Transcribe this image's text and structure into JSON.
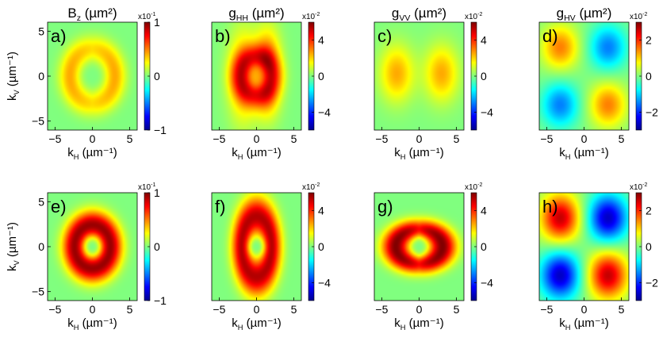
{
  "chart_data": [
    {
      "id": "a",
      "type": "heatmap",
      "panel_label": "a)",
      "title": "B",
      "title_sub": "z",
      "title_unit": " (µm²)",
      "xlabel": "k",
      "xlabel_sub": "H",
      "xlabel_unit": " (µm⁻¹)",
      "ylabel": "k",
      "ylabel_sub": "V",
      "ylabel_unit": " (µm⁻¹)",
      "xticks": [
        -5,
        0,
        5
      ],
      "yticks": [
        5,
        0,
        -5
      ],
      "xlim": [
        -6,
        6
      ],
      "ylim": [
        -6,
        6
      ],
      "colorbar": {
        "exponent_label": "x10",
        "exponent": "-1",
        "vmin": -1,
        "vmax": 1,
        "ticks": [
          1,
          0,
          -1
        ]
      },
      "pattern": "two_crescents",
      "peak": 0.42
    },
    {
      "id": "b",
      "type": "heatmap",
      "panel_label": "b)",
      "title": "g",
      "title_sub": "HH",
      "title_unit": " (µm²)",
      "xlabel": "k",
      "xlabel_sub": "H",
      "xlabel_unit": " (µm⁻¹)",
      "ylabel": "",
      "xticks": [
        -5,
        0,
        5
      ],
      "yticks": [],
      "xlim": [
        -6,
        6
      ],
      "ylim": [
        -6,
        6
      ],
      "colorbar": {
        "exponent_label": "x10",
        "exponent": "-2",
        "vmin": -6,
        "vmax": 6,
        "ticks": [
          4,
          0,
          -4
        ]
      },
      "pattern": "vertical_bands",
      "peak": 5.0
    },
    {
      "id": "c",
      "type": "heatmap",
      "panel_label": "c)",
      "title": "g",
      "title_sub": "VV",
      "title_unit": " (µm²)",
      "xlabel": "k",
      "xlabel_sub": "H",
      "xlabel_unit": " (µm⁻¹)",
      "ylabel": "",
      "xticks": [
        -5,
        0,
        5
      ],
      "yticks": [],
      "xlim": [
        -6,
        6
      ],
      "ylim": [
        -6,
        6
      ],
      "colorbar": {
        "exponent_label": "x10",
        "exponent": "-2",
        "vmin": -6,
        "vmax": 6,
        "ticks": [
          4,
          0,
          -4
        ]
      },
      "pattern": "two_lobes",
      "peak": 2.5
    },
    {
      "id": "d",
      "type": "heatmap",
      "panel_label": "d)",
      "title": "g",
      "title_sub": "HV",
      "title_unit": " (µm²)",
      "xlabel": "k",
      "xlabel_sub": "H",
      "xlabel_unit": " (µm⁻¹)",
      "ylabel": "",
      "xticks": [
        -5,
        0,
        5
      ],
      "yticks": [],
      "xlim": [
        -6,
        6
      ],
      "ylim": [
        -6,
        6
      ],
      "colorbar": {
        "exponent_label": "x10",
        "exponent": "-2",
        "vmin": -3,
        "vmax": 3,
        "ticks": [
          2,
          0,
          -2
        ]
      },
      "pattern": "quadrupole",
      "peak": 1.5
    },
    {
      "id": "e",
      "type": "heatmap",
      "panel_label": "e)",
      "title": "",
      "xlabel": "k",
      "xlabel_sub": "H",
      "xlabel_unit": " (µm⁻¹)",
      "ylabel": "k",
      "ylabel_sub": "V",
      "ylabel_unit": " (µm⁻¹)",
      "xticks": [
        -5,
        0,
        5
      ],
      "yticks": [
        5,
        0,
        -5
      ],
      "xlim": [
        -6,
        6
      ],
      "ylim": [
        -6,
        6
      ],
      "colorbar": {
        "exponent_label": "x10",
        "exponent": "-1",
        "vmin": -1,
        "vmax": 1,
        "ticks": [
          1,
          0,
          -1
        ]
      },
      "pattern": "ring",
      "peak": 0.95
    },
    {
      "id": "f",
      "type": "heatmap",
      "panel_label": "f)",
      "title": "",
      "xlabel": "k",
      "xlabel_sub": "H",
      "xlabel_unit": " (µm⁻¹)",
      "ylabel": "",
      "xticks": [
        -5,
        0,
        5
      ],
      "yticks": [],
      "xlim": [
        -6,
        6
      ],
      "ylim": [
        -6,
        6
      ],
      "colorbar": {
        "exponent_label": "x10",
        "exponent": "-2",
        "vmin": -6,
        "vmax": 6,
        "ticks": [
          4,
          0,
          -4
        ]
      },
      "pattern": "ring_vertical",
      "peak": 5.4
    },
    {
      "id": "g",
      "type": "heatmap",
      "panel_label": "g)",
      "title": "",
      "xlabel": "k",
      "xlabel_sub": "H",
      "xlabel_unit": " (µm⁻¹)",
      "ylabel": "",
      "xticks": [
        -5,
        0,
        5
      ],
      "yticks": [],
      "xlim": [
        -6,
        6
      ],
      "ylim": [
        -6,
        6
      ],
      "colorbar": {
        "exponent_label": "x10",
        "exponent": "-2",
        "vmin": -6,
        "vmax": 6,
        "ticks": [
          4,
          0,
          -4
        ]
      },
      "pattern": "ring_horizontal",
      "peak": 6.0
    },
    {
      "id": "h",
      "type": "heatmap",
      "panel_label": "h)",
      "title": "",
      "xlabel": "k",
      "xlabel_sub": "H",
      "xlabel_unit": " (µm⁻¹)",
      "ylabel": "",
      "xticks": [
        -5,
        0,
        5
      ],
      "yticks": [],
      "xlim": [
        -6,
        6
      ],
      "ylim": [
        -6,
        6
      ],
      "colorbar": {
        "exponent_label": "x10",
        "exponent": "-2",
        "vmin": -3,
        "vmax": 3,
        "ticks": [
          2,
          0,
          -2
        ]
      },
      "pattern": "quadrupole_strong",
      "peak": 2.6
    }
  ]
}
